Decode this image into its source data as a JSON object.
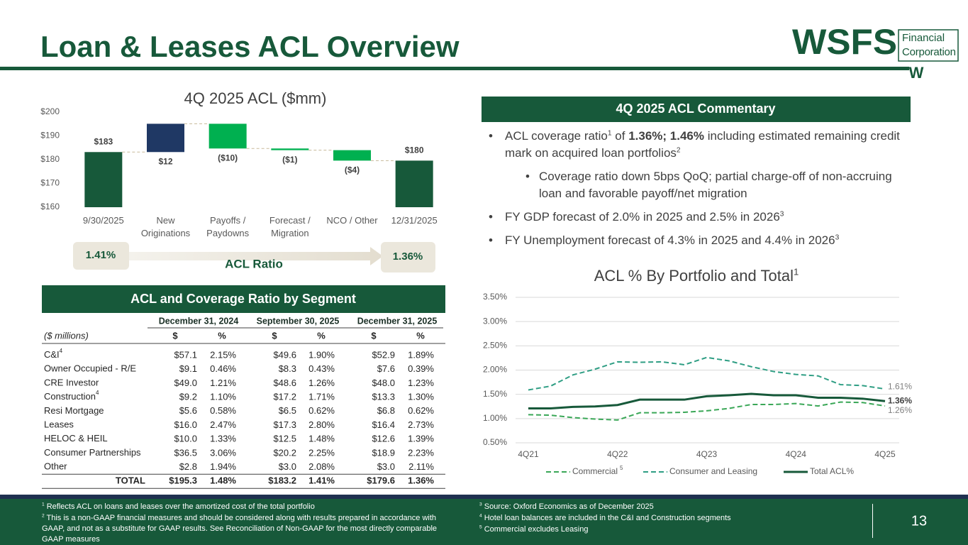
{
  "header": {
    "title": "Loan & Leases ACL Overview",
    "logo": {
      "wordmark": "WSFS",
      "line1": "Financial",
      "line2": "Corporation",
      "mark": "W"
    }
  },
  "chart_data": [
    {
      "type": "waterfall",
      "title": "4Q 2025 ACL ($mm)",
      "categories": [
        "9/30/2025",
        "New Originations",
        "Payoffs / Paydowns",
        "Forecast / Migration",
        "NCO / Other",
        "12/31/2025"
      ],
      "values": [
        183.2,
        11.9,
        -10.4,
        -0.7,
        -4.4,
        179.6
      ],
      "value_labels": [
        "$183",
        "$12",
        "($10)",
        "($1)",
        "($4)",
        "$180"
      ],
      "total_color": "#17593a",
      "increase_color": "#1f3864",
      "decrease_color": "#00b050",
      "ylim": [
        160,
        200
      ],
      "yticks": [
        {
          "value": 160,
          "label": "$160"
        },
        {
          "value": 170,
          "label": "$170"
        },
        {
          "value": 180,
          "label": "$180"
        },
        {
          "value": 190,
          "label": "$190"
        },
        {
          "value": 200,
          "label": "$200"
        }
      ],
      "grid": false,
      "ratio": {
        "start": "1.41%",
        "end": "1.36%",
        "label": "ACL Ratio"
      }
    },
    {
      "type": "line",
      "title": "ACL % By Portfolio and Total",
      "title_note": "1",
      "categories": [
        "4Q21",
        null,
        null,
        null,
        "4Q22",
        null,
        null,
        null,
        "4Q23",
        null,
        null,
        null,
        "4Q24",
        null,
        null,
        null,
        "4Q25"
      ],
      "series": [
        {
          "name": "Commercial",
          "name_note": "5",
          "color": "#3aa757",
          "line_style": "dashed",
          "values": [
            1.08,
            1.07,
            1.02,
            0.99,
            0.97,
            1.12,
            1.12,
            1.13,
            1.16,
            1.21,
            1.29,
            1.29,
            1.31,
            1.26,
            1.34,
            1.33,
            1.26
          ],
          "value_labels": [
            null,
            null,
            null,
            null,
            null,
            null,
            null,
            null,
            null,
            null,
            null,
            null,
            null,
            null,
            null,
            null,
            "1.26%"
          ]
        },
        {
          "name": "Consumer and Leasing",
          "color": "#2f9e84",
          "line_style": "dashed",
          "values": [
            1.59,
            1.67,
            1.9,
            2.02,
            2.17,
            2.16,
            2.17,
            2.11,
            2.26,
            2.19,
            2.07,
            1.97,
            1.91,
            1.88,
            1.7,
            1.68,
            1.61
          ],
          "value_labels": [
            null,
            null,
            null,
            null,
            null,
            null,
            null,
            null,
            null,
            null,
            null,
            null,
            null,
            null,
            null,
            null,
            "1.61%"
          ]
        },
        {
          "name": "Total ACL%",
          "color": "#17593a",
          "line_style": "solid",
          "values": [
            1.21,
            1.21,
            1.24,
            1.25,
            1.28,
            1.39,
            1.39,
            1.39,
            1.46,
            1.48,
            1.51,
            1.48,
            1.48,
            1.43,
            1.43,
            1.41,
            1.36
          ],
          "value_labels": [
            null,
            null,
            null,
            null,
            null,
            null,
            null,
            null,
            null,
            null,
            null,
            null,
            null,
            null,
            null,
            null,
            "1.36%"
          ]
        }
      ],
      "ylim": [
        0.5,
        3.5
      ],
      "yticks": [
        {
          "value": 0.5,
          "label": "0.50%"
        },
        {
          "value": 1,
          "label": "1.00%"
        },
        {
          "value": 1.5,
          "label": "1.50%"
        },
        {
          "value": 2,
          "label": "2.00%"
        },
        {
          "value": 2.5,
          "label": "2.50%"
        },
        {
          "value": 3,
          "label": "3.00%"
        },
        {
          "value": 3.5,
          "label": "3.50%"
        }
      ],
      "grid": true,
      "legend": "bottom"
    }
  ],
  "segment_table": {
    "title": "ACL and Coverage Ratio by Segment",
    "groups": [
      "December 31, 2024",
      "September 30, 2025",
      "December 31, 2025"
    ],
    "unit_label": "($ millions)",
    "columns": [
      "$",
      "%",
      "$",
      "%",
      "$",
      "%"
    ],
    "rows": [
      {
        "label": "C&I",
        "note": "4",
        "cells": [
          "$57.1",
          "2.15%",
          "$49.6",
          "1.90%",
          "$52.9",
          "1.89%"
        ]
      },
      {
        "label": "Owner Occupied - R/E",
        "cells": [
          "$9.1",
          "0.46%",
          "$8.3",
          "0.43%",
          "$7.6",
          "0.39%"
        ]
      },
      {
        "label": "CRE Investor",
        "cells": [
          "$49.0",
          "1.21%",
          "$48.6",
          "1.26%",
          "$48.0",
          "1.23%"
        ]
      },
      {
        "label": "Construction",
        "note": "4",
        "cells": [
          "$9.2",
          "1.10%",
          "$17.2",
          "1.71%",
          "$13.3",
          "1.30%"
        ]
      },
      {
        "label": "Resi Mortgage",
        "cells": [
          "$5.6",
          "0.58%",
          "$6.5",
          "0.62%",
          "$6.8",
          "0.62%"
        ]
      },
      {
        "label": "Leases",
        "cells": [
          "$16.0",
          "2.47%",
          "$17.3",
          "2.80%",
          "$16.4",
          "2.73%"
        ]
      },
      {
        "label": "HELOC & HEIL",
        "cells": [
          "$10.0",
          "1.33%",
          "$12.5",
          "1.48%",
          "$12.6",
          "1.39%"
        ]
      },
      {
        "label": "Consumer Partnerships",
        "cells": [
          "$36.5",
          "3.06%",
          "$20.2",
          "2.25%",
          "$18.9",
          "2.23%"
        ]
      },
      {
        "label": "Other",
        "cells": [
          "$2.8",
          "1.94%",
          "$3.0",
          "2.08%",
          "$3.0",
          "2.11%"
        ]
      },
      {
        "label": "TOTAL",
        "total": true,
        "cells": [
          "$195.3",
          "1.48%",
          "$183.2",
          "1.41%",
          "$179.6",
          "1.36%"
        ]
      }
    ]
  },
  "commentary": {
    "title": "4Q 2025 ACL Commentary",
    "bullets": [
      {
        "level": 1,
        "parts": [
          {
            "text": "ACL coverage ratio"
          },
          {
            "text": "1",
            "style": "sup"
          },
          {
            "text": " of "
          },
          {
            "text": "1.36%; 1.46%",
            "style": "bold"
          },
          {
            "text": " including estimated remaining credit mark on acquired loan portfolios"
          },
          {
            "text": "2",
            "style": "sup"
          }
        ]
      },
      {
        "level": 2,
        "parts": [
          {
            "text": "Coverage ratio down 5bps QoQ; partial charge-off of non-accruing loan and favorable payoff/net migration"
          }
        ]
      },
      {
        "level": 1,
        "parts": [
          {
            "text": "FY GDP forecast of 2.0% in 2025 and 2.5% in 2026"
          },
          {
            "text": "3",
            "style": "sup"
          }
        ]
      },
      {
        "level": 1,
        "parts": [
          {
            "text": "FY Unemployment forecast of 4.3% in 2025 and 4.4% in 2026"
          },
          {
            "text": "3",
            "style": "sup"
          }
        ]
      }
    ]
  },
  "footnotes": {
    "left": [
      {
        "note": "1",
        "text": "Reflects ACL on loans and leases over the amortized cost of the total portfolio"
      },
      {
        "note": "2",
        "text": "This is a non-GAAP financial measures and should be considered along with results prepared in accordance with GAAP, and not as a substitute for GAAP results.  See Reconciliation of Non-GAAP for the most directly comparable GAAP measures"
      }
    ],
    "right": [
      {
        "note": "3",
        "text": "Source: Oxford Economics as of December 2025"
      },
      {
        "note": "4",
        "text": "Hotel loan balances are included in the C&I and Construction segments"
      },
      {
        "note": "5",
        "text": "Commercial excludes Leasing"
      }
    ]
  },
  "page_number": "13"
}
